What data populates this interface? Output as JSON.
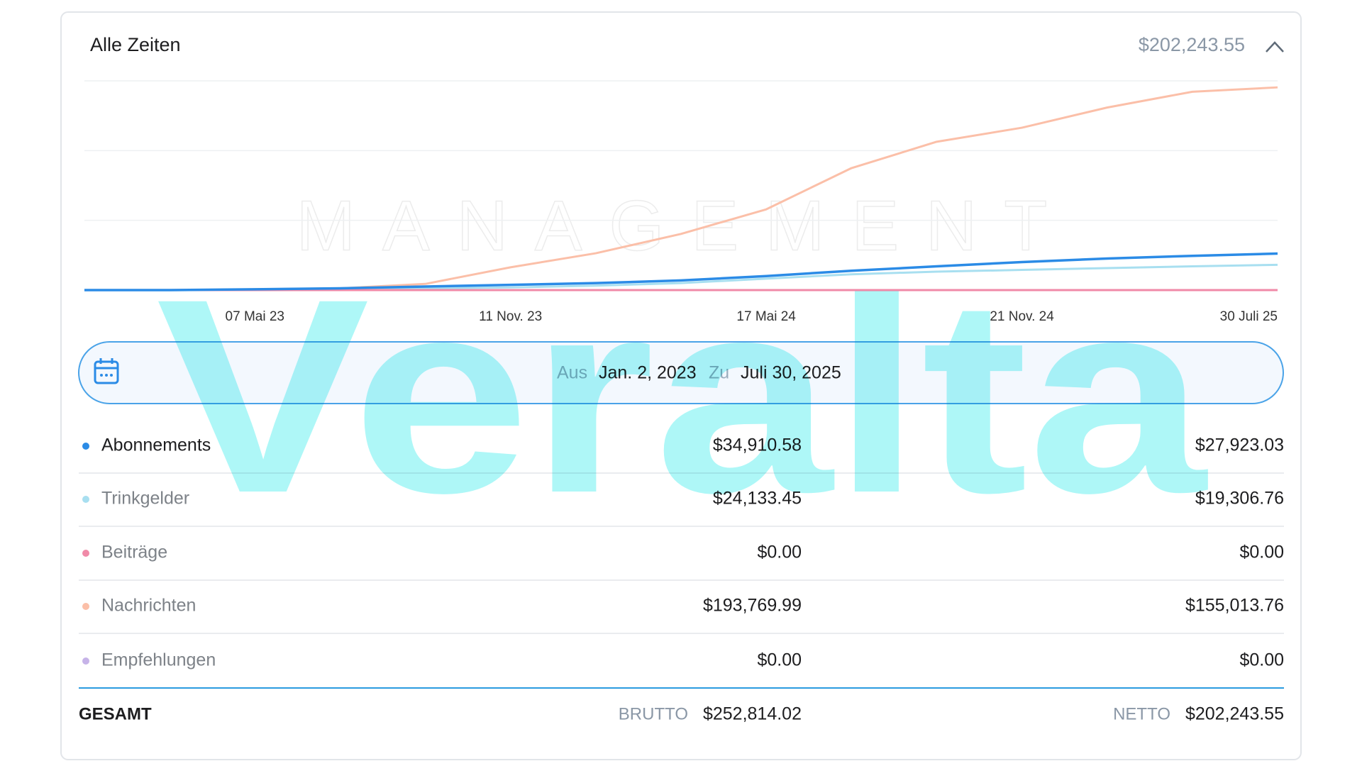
{
  "header": {
    "title": "Alle Zeiten",
    "total": "$202,243.55"
  },
  "chart_data": {
    "type": "line",
    "categories": [
      null,
      null,
      "07 Mai 23",
      null,
      null,
      "11 Nov. 23",
      null,
      null,
      "17 Mai 24",
      null,
      null,
      "21 Nov. 24",
      null,
      null,
      "30 Juli 25"
    ],
    "series": [
      {
        "name": "Abonnements",
        "color": "#2b8be6",
        "values": [
          0,
          0,
          800,
          1700,
          3400,
          5000,
          6700,
          9200,
          13400,
          18500,
          22700,
          26800,
          30200,
          32700,
          34910.58
        ]
      },
      {
        "name": "Trinkgelder",
        "color": "#a8dff0",
        "values": [
          0,
          0,
          0,
          800,
          1700,
          2500,
          4200,
          6700,
          10900,
          15100,
          17600,
          19300,
          21000,
          22700,
          24133.45
        ]
      },
      {
        "name": "Beiträge",
        "color": "#f08aa8",
        "values": [
          0,
          0,
          0,
          0,
          0,
          0,
          0,
          0,
          0,
          0,
          0,
          0,
          0,
          0,
          0
        ]
      },
      {
        "name": "Nachrichten",
        "color": "#fbbfa8",
        "values": [
          0,
          0,
          800,
          1700,
          5900,
          21800,
          35200,
          53700,
          77200,
          116600,
          141800,
          155200,
          174500,
          189600,
          193769.99
        ]
      },
      {
        "name": "Empfehlungen",
        "color": "#c6b3e8",
        "values": [
          0,
          0,
          0,
          0,
          0,
          0,
          0,
          0,
          0,
          0,
          0,
          0,
          0,
          0,
          0
        ]
      }
    ],
    "ylim": [
      0,
      200000
    ],
    "grid": true
  },
  "date_range": {
    "from_label": "Aus",
    "from": "Jan. 2, 2023",
    "to_label": "Zu",
    "to": "Juli 30, 2025"
  },
  "table": {
    "rows": [
      {
        "gross": "$34,910.58",
        "net": "$27,923.03"
      },
      {
        "gross": "$24,133.45",
        "net": "$19,306.76"
      },
      {
        "gross": "$0.00",
        "net": "$0.00"
      },
      {
        "gross": "$193,769.99",
        "net": "$155,013.76"
      },
      {
        "gross": "$0.00",
        "net": "$0.00"
      }
    ],
    "total": {
      "label": "GESAMT",
      "gross_label": "BRUTTO",
      "gross": "$252,814.02",
      "net_label": "NETTO",
      "net": "$202,243.55"
    }
  },
  "watermarks": [
    "MANAGEMENT",
    "Veralta"
  ]
}
